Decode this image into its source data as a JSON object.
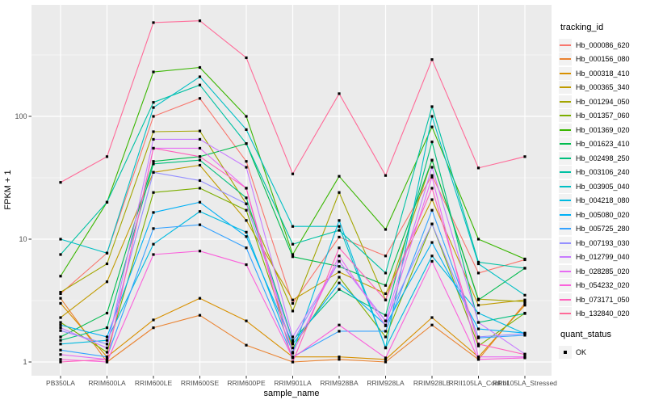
{
  "colors": {
    "panel_bg": "#EBEBEB",
    "grid": "#FFFFFF",
    "tick_mark": "#333333",
    "tick_label": "#4D4D4D",
    "axis_title": "#000000",
    "legend_key_bg": "#F2F2F2",
    "point": "#000000"
  },
  "y_axis": {
    "title": "FPKM + 1",
    "tick_values": [
      100,
      10,
      1
    ],
    "minor_values": [
      316.23,
      31.623,
      3.1623
    ]
  },
  "x_axis": {
    "title": "sample_name"
  },
  "legend": {
    "tracking_title": "tracking_id",
    "quant_title": "quant_status",
    "quant_items": [
      {
        "label": "OK",
        "marker": "black-square"
      }
    ]
  },
  "chart_data": {
    "type": "line",
    "title": "",
    "xlabel": "sample_name",
    "ylabel": "FPKM + 1",
    "y_scale": "log10",
    "ylim": [
      0.85,
      760
    ],
    "grid": true,
    "legend_position": "right",
    "point_marker": "black-square",
    "categories": [
      "PB350LA",
      "RRIM600LA",
      "RRIM600LE",
      "RRIM600SE",
      "RRIM600PE",
      "RRIM901LA",
      "RRIM928BA",
      "RRIM928LA",
      "RRIM928LE",
      "RRII105LA_Control",
      "RRII105LA_Stressed"
    ],
    "series": [
      {
        "name": "Hb_000086_620",
        "color": "#F8766D",
        "values": [
          3.6,
          7.7,
          100,
          140,
          43,
          3.0,
          10.4,
          7.3,
          33,
          5.3,
          6.8
        ]
      },
      {
        "name": "Hb_000156_080",
        "color": "#EA8331",
        "values": [
          3.3,
          1.0,
          1.9,
          2.4,
          1.37,
          1.0,
          1.05,
          1.0,
          2.0,
          1.05,
          3.0
        ]
      },
      {
        "name": "Hb_000318_410",
        "color": "#D89000",
        "values": [
          3.0,
          1.1,
          2.2,
          3.3,
          2.16,
          1.1,
          1.1,
          1.05,
          2.3,
          1.1,
          2.9
        ]
      },
      {
        "name": "Hb_000365_340",
        "color": "#C09B00",
        "values": [
          2.3,
          4.5,
          35,
          40,
          14.2,
          3.2,
          5.4,
          3.6,
          21,
          2.9,
          3.2
        ]
      },
      {
        "name": "Hb_001294_050",
        "color": "#A3A500",
        "values": [
          3.7,
          6.3,
          75,
          76,
          19.4,
          2.6,
          24,
          3.2,
          44,
          3.25,
          3.1
        ]
      },
      {
        "name": "Hb_001357_060",
        "color": "#7CAE00",
        "values": [
          2.1,
          1.2,
          24,
          26,
          17.2,
          1.3,
          4.9,
          1.6,
          13.3,
          1.35,
          2.5
        ]
      },
      {
        "name": "Hb_001369_020",
        "color": "#39B600",
        "values": [
          5.0,
          20,
          230,
          250,
          100,
          7.5,
          32.5,
          12,
          82,
          10,
          6.9
        ]
      },
      {
        "name": "Hb_001623_410",
        "color": "#00BB4E",
        "values": [
          1.6,
          2.5,
          43,
          47,
          60,
          7.2,
          6.0,
          4.2,
          44,
          3.2,
          5.8
        ]
      },
      {
        "name": "Hb_002498_250",
        "color": "#00BF7D",
        "values": [
          1.5,
          1.9,
          41,
          44,
          21.7,
          1.5,
          3.9,
          2.4,
          62,
          2.1,
          2.48
        ]
      },
      {
        "name": "Hb_003106_240",
        "color": "#00C1A3",
        "values": [
          7.5,
          20,
          130,
          180,
          60,
          9.1,
          11.8,
          5.3,
          120,
          6.5,
          5.8
        ]
      },
      {
        "name": "Hb_003905_040",
        "color": "#00BFC4",
        "values": [
          10,
          7.7,
          118,
          210,
          78,
          12.7,
          12.7,
          1.31,
          100,
          6.3,
          3.5
        ]
      },
      {
        "name": "Hb_004218_080",
        "color": "#00BAE0",
        "values": [
          1.4,
          1.5,
          9.1,
          16.8,
          11.4,
          1.2,
          14.2,
          1.3,
          7.3,
          2.5,
          1.7
        ]
      },
      {
        "name": "Hb_005080_020",
        "color": "#00B0F6",
        "values": [
          2.0,
          1.6,
          16.5,
          20,
          10.5,
          1.4,
          4.4,
          2.0,
          9.4,
          1.86,
          1.72
        ]
      },
      {
        "name": "Hb_005725_280",
        "color": "#35A2FF",
        "values": [
          1.25,
          1.1,
          12.2,
          13.1,
          8.5,
          1.1,
          1.78,
          1.78,
          17.2,
          1.57,
          1.65
        ]
      },
      {
        "name": "Hb_007193_030",
        "color": "#9590FF",
        "values": [
          1.8,
          1.4,
          35,
          30,
          19.4,
          1.46,
          6.6,
          2.16,
          13.3,
          1.6,
          1.7
        ]
      },
      {
        "name": "Hb_012799_040",
        "color": "#C77CFF",
        "values": [
          1.9,
          1.3,
          65,
          65,
          38.5,
          1.6,
          6.6,
          2.16,
          38.5,
          2.1,
          1.16
        ]
      },
      {
        "name": "Hb_028285_020",
        "color": "#E76BF3",
        "values": [
          1.15,
          1.05,
          55,
          55,
          26,
          1.18,
          7.3,
          1.97,
          32,
          1.1,
          1.1
        ]
      },
      {
        "name": "Hb_054232_020",
        "color": "#FA62DB",
        "values": [
          1.05,
          1.0,
          7.5,
          8.0,
          6.2,
          1.08,
          2.0,
          1.08,
          6.6,
          1.05,
          1.08
        ]
      },
      {
        "name": "Hb_073171_050",
        "color": "#FF62BC",
        "values": [
          1.0,
          1.05,
          55,
          47,
          26,
          1.0,
          8.5,
          3.2,
          26,
          1.4,
          1.15
        ]
      },
      {
        "name": "Hb_132840_020",
        "color": "#FF6A98",
        "values": [
          29,
          47,
          580,
          600,
          300,
          34,
          153,
          33,
          290,
          38,
          47
        ]
      }
    ]
  }
}
